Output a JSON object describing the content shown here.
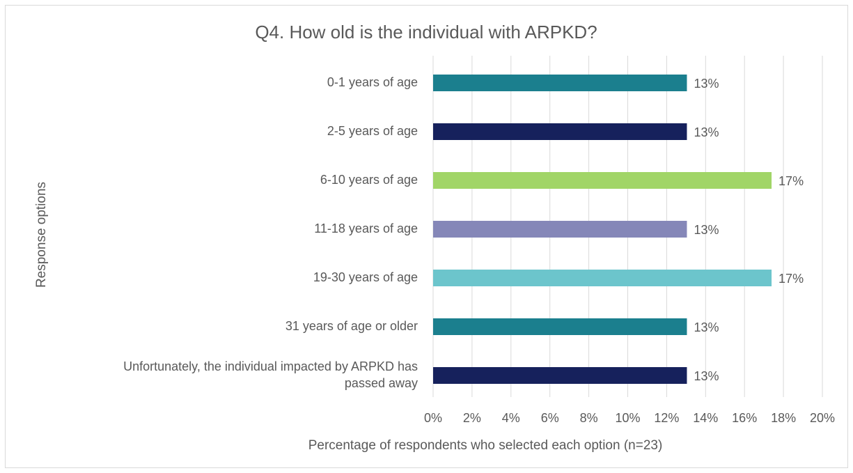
{
  "chart_data": {
    "type": "bar",
    "orientation": "horizontal",
    "title": "Q4. How old is the individual with ARPKD?",
    "x_label": "Percentage of respondents who selected each option (n=23)",
    "y_label": "Response options",
    "categories": [
      "0-1 years of age",
      "2-5 years of age",
      "6-10 years of age",
      "11-18 years of age",
      "19-30 years of age",
      "31 years of age or older",
      "Unfortunately, the individual impacted by ARPKD has passed away"
    ],
    "values": [
      13.04,
      13.04,
      17.39,
      13.04,
      17.39,
      13.04,
      13.04
    ],
    "value_labels": [
      "13%",
      "13%",
      "17%",
      "13%",
      "17%",
      "13%",
      "13%"
    ],
    "colors": [
      "#1b7f8e",
      "#16215c",
      "#a1d567",
      "#8587b8",
      "#6cc5cc",
      "#1b7f8e",
      "#16215c"
    ],
    "xlim": [
      0,
      20
    ],
    "xticks": [
      {
        "value": 0,
        "label": "0%"
      },
      {
        "value": 2,
        "label": "2%"
      },
      {
        "value": 4,
        "label": "4%"
      },
      {
        "value": 6,
        "label": "6%"
      },
      {
        "value": 8,
        "label": "8%"
      },
      {
        "value": 10,
        "label": "10%"
      },
      {
        "value": 12,
        "label": "12%"
      },
      {
        "value": 14,
        "label": "14%"
      },
      {
        "value": 16,
        "label": "16%"
      },
      {
        "value": 18,
        "label": "18%"
      },
      {
        "value": 20,
        "label": "20%"
      }
    ],
    "grid": true
  }
}
